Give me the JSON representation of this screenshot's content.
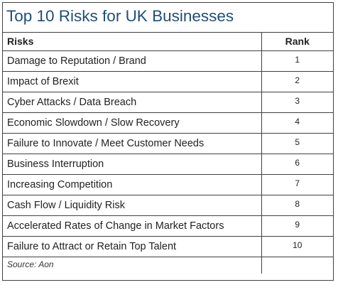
{
  "title": "Top 10 Risks for UK Businesses",
  "headers": {
    "risks": "Risks",
    "rank": "Rank"
  },
  "rows": [
    {
      "risk": "Damage to Reputation / Brand",
      "rank": "1"
    },
    {
      "risk": "Impact of Brexit",
      "rank": "2"
    },
    {
      "risk": "Cyber Attacks / Data Breach",
      "rank": "3"
    },
    {
      "risk": "Economic Slowdown / Slow Recovery",
      "rank": "4"
    },
    {
      "risk": "Failure to Innovate / Meet Customer Needs",
      "rank": "5"
    },
    {
      "risk": "Business Interruption",
      "rank": "6"
    },
    {
      "risk": "Increasing Competition",
      "rank": "7"
    },
    {
      "risk": "Cash Flow / Liquidity Risk",
      "rank": "8"
    },
    {
      "risk": "Accelerated Rates of Change in Market Factors",
      "rank": "9"
    },
    {
      "risk": "Failure to Attract or Retain Top Talent",
      "rank": "10"
    }
  ],
  "source": "Source: Aon",
  "colors": {
    "title": "#1f4e79",
    "border": "#404040"
  }
}
